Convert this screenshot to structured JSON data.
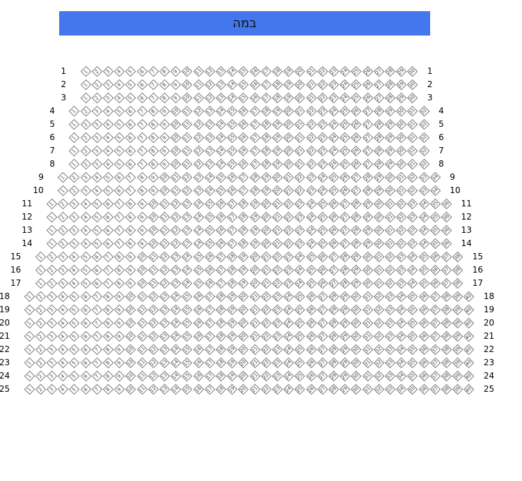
{
  "stage": {
    "label": "במה"
  },
  "rows": [
    {
      "label": "1",
      "seats": 30
    },
    {
      "label": "2",
      "seats": 30
    },
    {
      "label": "3",
      "seats": 30
    },
    {
      "label": "4",
      "seats": 32
    },
    {
      "label": "5",
      "seats": 32
    },
    {
      "label": "6",
      "seats": 32
    },
    {
      "label": "7",
      "seats": 32
    },
    {
      "label": "8",
      "seats": 32
    },
    {
      "label": "9",
      "seats": 34
    },
    {
      "label": "10",
      "seats": 34
    },
    {
      "label": "11",
      "seats": 36
    },
    {
      "label": "12",
      "seats": 36
    },
    {
      "label": "13",
      "seats": 36
    },
    {
      "label": "14",
      "seats": 36
    },
    {
      "label": "15",
      "seats": 38
    },
    {
      "label": "16",
      "seats": 38
    },
    {
      "label": "17",
      "seats": 38
    },
    {
      "label": "18",
      "seats": 40
    },
    {
      "label": "19",
      "seats": 40
    },
    {
      "label": "20",
      "seats": 40
    },
    {
      "label": "21",
      "seats": 40
    },
    {
      "label": "22",
      "seats": 40
    },
    {
      "label": "23",
      "seats": 40
    },
    {
      "label": "24",
      "seats": 40
    },
    {
      "label": "25",
      "seats": 40
    }
  ],
  "colors": {
    "stage": "#4477ee",
    "seat_border": "#777777"
  }
}
